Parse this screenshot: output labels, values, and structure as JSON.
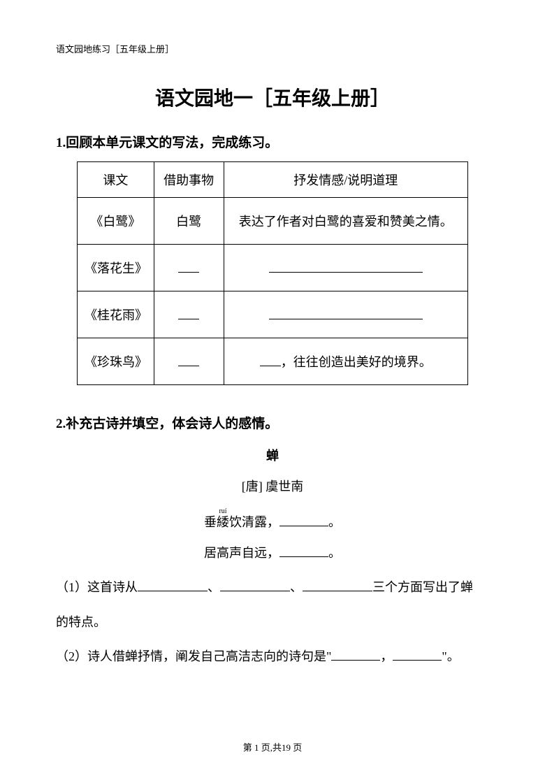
{
  "header": "语文园地练习［五年级上册］",
  "title": "语文园地一［五年级上册］",
  "q1": {
    "heading": "1.回顾本单元课文的写法，完成练习。",
    "table": {
      "headers": [
        "课文",
        "借助事物",
        "抒发情感/说明道理"
      ],
      "rows": [
        {
          "text": "《白鹭》",
          "thing": "白鹭",
          "feeling": "表达了作者对白鹭的喜爱和赞美之情。"
        },
        {
          "text": "《落花生》",
          "thing": "",
          "feeling": ""
        },
        {
          "text": "《桂花雨》",
          "thing": "",
          "feeling": ""
        },
        {
          "text": "《珍珠鸟》",
          "thing": "",
          "feeling_suffix": "，往往创造出美好的境界。"
        }
      ]
    }
  },
  "q2": {
    "heading": "2.补充古诗并填空，体会诗人的感情。",
    "poem": {
      "title": "蝉",
      "author": "[唐] 虞世南",
      "line1_pre": "垂",
      "line1_ruby": "緌",
      "line1_rt": "ruí",
      "line1_post": "饮清露，",
      "line2": "居高声自远，"
    },
    "sub1_pre": "（1）这首诗从",
    "sub1_mid1": "、",
    "sub1_mid2": "、",
    "sub1_post": "三个方面写出了蝉",
    "sub1_end": "的特点。",
    "sub2_pre": "（2）诗人借蝉抒情，阐发自己高洁志向的诗句是\"",
    "sub2_mid": "，",
    "sub2_post": "\"。"
  },
  "footer": "第 1 页,共19 页",
  "punct": {
    "period": "。"
  }
}
